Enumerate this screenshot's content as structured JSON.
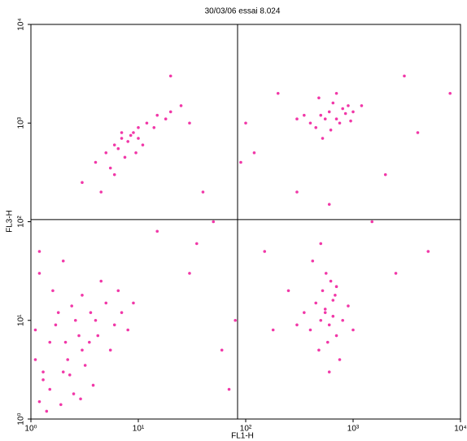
{
  "chart_data": {
    "type": "scatter",
    "title": "30/03/06 essai 8.024",
    "x_label": "FL1-H",
    "y_label": "FL3-H",
    "log_x": true,
    "log_y": true,
    "color": "#ee1599",
    "xlim": [
      1,
      10000
    ],
    "ylim": [
      1,
      10000
    ],
    "xticks": [
      {
        "value": 1,
        "label": "10⁰"
      },
      {
        "value": 10,
        "label": "10¹"
      },
      {
        "value": 100,
        "label": "10²"
      },
      {
        "value": 1000,
        "label": "10³"
      },
      {
        "value": 10000,
        "label": "10⁴"
      }
    ],
    "yticks": [
      {
        "value": 1,
        "label": "10⁰"
      },
      {
        "value": 10,
        "label": "10¹"
      },
      {
        "value": 100,
        "label": "10²"
      },
      {
        "value": 1000,
        "label": "10³"
      },
      {
        "value": 10000,
        "label": "10⁴"
      }
    ],
    "quadrant": {
      "x": 84,
      "y": 105
    },
    "x": [
      1.2,
      1.5,
      2,
      2.5,
      3,
      1.1,
      1.8,
      2.2,
      3.5,
      4,
      1.3,
      1.6,
      2.8,
      5,
      6,
      1.4,
      2.1,
      3.2,
      4.5,
      7,
      1.2,
      1.9,
      2.6,
      3.8,
      1.1,
      1.5,
      2.4,
      3,
      5.5,
      8,
      1.3,
      2,
      2.9,
      4.2,
      1.7,
      2.3,
      3.6,
      6.5,
      1.2,
      9,
      5,
      6,
      7,
      8,
      9,
      10,
      6.5,
      7.5,
      12,
      15,
      4,
      5.5,
      8.5,
      11,
      20,
      3,
      6,
      9.5,
      14,
      25,
      4.5,
      7,
      10,
      18,
      30,
      400,
      500,
      600,
      700,
      800,
      900,
      450,
      550,
      650,
      750,
      1000,
      350,
      480,
      620,
      850,
      1200,
      300,
      520,
      700,
      950,
      400,
      500,
      550,
      600,
      650,
      700,
      450,
      520,
      580,
      800,
      350,
      480,
      620,
      900,
      1000,
      300,
      560,
      680,
      750,
      420,
      500,
      600,
      550,
      650,
      700,
      30,
      50,
      80,
      120,
      200,
      2000,
      3000,
      150,
      40,
      60,
      100,
      300,
      5000,
      20,
      70,
      250,
      1500,
      4000,
      90,
      35,
      180,
      2500,
      600,
      15,
      8000
    ],
    "y": [
      1.5,
      2,
      3,
      1.8,
      5,
      8,
      12,
      4,
      6,
      10,
      2.5,
      20,
      7,
      15,
      9,
      1.2,
      6,
      3.5,
      25,
      12,
      30,
      1.4,
      10,
      2.2,
      4,
      6,
      14,
      18,
      5,
      8,
      3,
      40,
      1.6,
      7,
      9,
      2.8,
      12,
      20,
      50,
      15,
      500,
      600,
      700,
      650,
      800,
      900,
      550,
      450,
      1000,
      1200,
      400,
      350,
      750,
      600,
      1300,
      250,
      300,
      500,
      900,
      1500,
      200,
      800,
      700,
      1100,
      1000,
      1000,
      1200,
      1300,
      1100,
      1400,
      1500,
      900,
      1100,
      1600,
      1000,
      1300,
      1200,
      1800,
      850,
      1250,
      1500,
      1100,
      700,
      2000,
      1050,
      8,
      10,
      12,
      9,
      11,
      7,
      15,
      20,
      6,
      10,
      12,
      5,
      25,
      14,
      8,
      9,
      30,
      18,
      4,
      40,
      60,
      3,
      13,
      16,
      22,
      30,
      100,
      10,
      500,
      2000,
      300,
      3000,
      50,
      200,
      5,
      1000,
      200,
      50,
      3000,
      2,
      20,
      100,
      800,
      400,
      60,
      8,
      30,
      150,
      80,
      2000
    ]
  }
}
